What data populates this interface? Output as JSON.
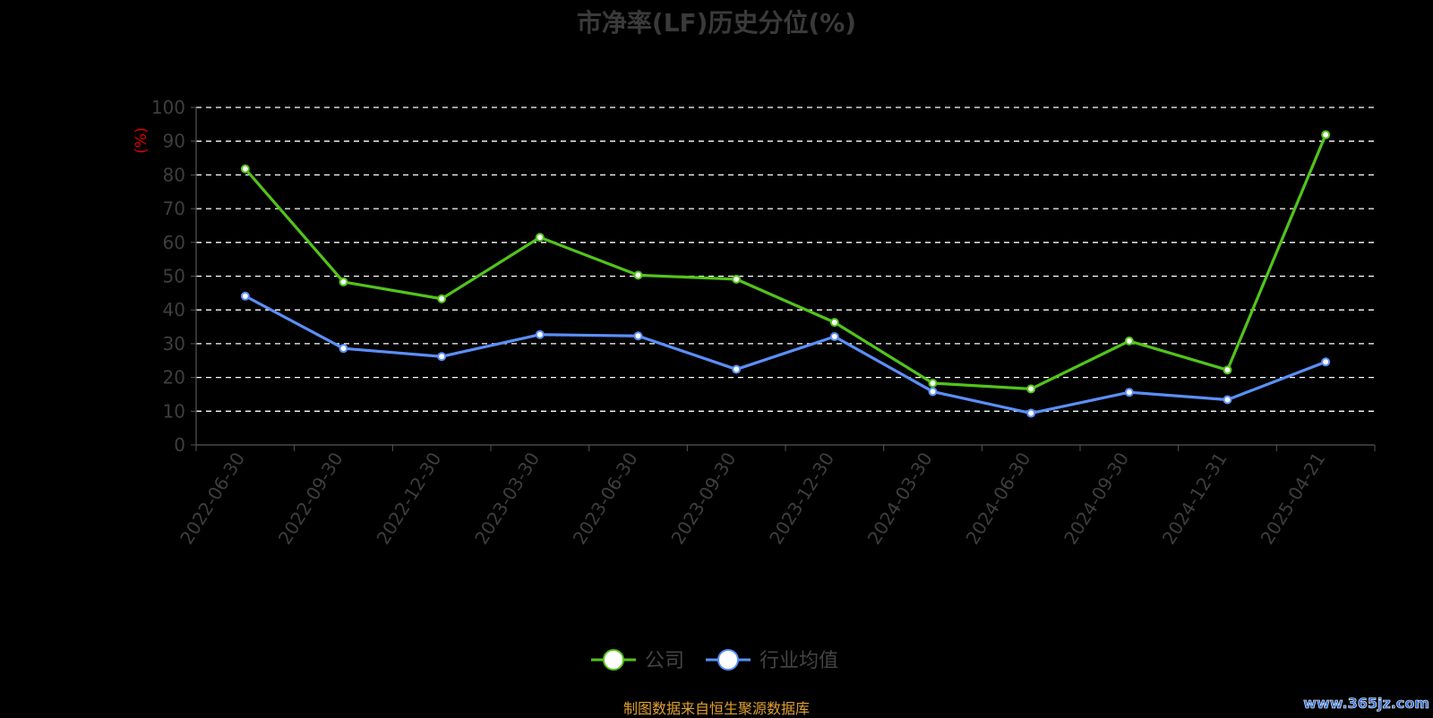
{
  "chart_data": {
    "type": "line",
    "title": "市净率(LF)历史分位(%)",
    "ylabel": "(%)",
    "xlabel": "",
    "ylim": [
      0,
      100
    ],
    "y_ticks": [
      0,
      10,
      20,
      30,
      40,
      50,
      60,
      70,
      80,
      90,
      100
    ],
    "grid": true,
    "legend_position": "bottom",
    "categories": [
      "2022-06-30",
      "2022-09-30",
      "2022-12-30",
      "2023-03-30",
      "2023-06-30",
      "2023-09-30",
      "2023-12-30",
      "2024-03-30",
      "2024-06-30",
      "2024-09-30",
      "2024-12-31",
      "2025-04-21"
    ],
    "series": [
      {
        "name": "公司",
        "color": "#52c41a",
        "values": [
          81.8,
          48.3,
          43.3,
          61.5,
          50.3,
          49.1,
          36.3,
          18.3,
          16.6,
          30.8,
          22.2,
          91.9
        ]
      },
      {
        "name": "行业均值",
        "color": "#5b8ff9",
        "values": [
          44.1,
          28.6,
          26.2,
          32.7,
          32.3,
          22.4,
          32.1,
          15.8,
          9.4,
          15.6,
          13.4,
          24.6
        ]
      }
    ]
  },
  "footer": {
    "source": "制图数据来自恒生聚源数据库",
    "watermark": "www.365jz.com"
  },
  "colors": {
    "background": "#000000",
    "ylabel": "#e00000",
    "source": "#e0a030",
    "watermark": "#2e6fd8"
  }
}
